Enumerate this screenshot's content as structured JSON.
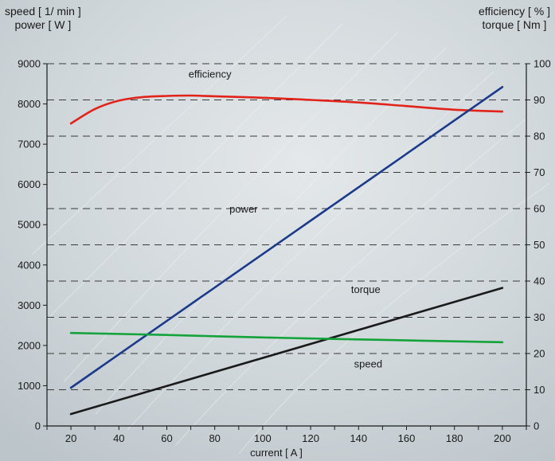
{
  "chart_data": {
    "type": "line",
    "left_axis_label_line1": "speed [ 1/ min ]",
    "left_axis_label_line2": "power [ W ]",
    "right_axis_label_line1": "efficiency [ % ]",
    "right_axis_label_line2": "torque [ Nm ]",
    "xlabel": "current  [ A ]",
    "xlim": [
      10,
      210
    ],
    "x_ticks": [
      20,
      40,
      60,
      80,
      100,
      120,
      140,
      160,
      180,
      200
    ],
    "ylim_left": [
      0,
      9000
    ],
    "y_ticks_left": [
      0,
      1000,
      2000,
      3000,
      4000,
      5000,
      6000,
      7000,
      8000,
      9000
    ],
    "ylim_right": [
      0,
      100
    ],
    "y_ticks_right": [
      0,
      10,
      20,
      30,
      40,
      50,
      60,
      70,
      80,
      90,
      100
    ],
    "grid": "horizontal-dashed",
    "series": [
      {
        "name": "efficiency",
        "axis": "right",
        "color": "#e2231a",
        "label_at": [
          78,
          8650
        ],
        "points": [
          [
            20,
            83.5
          ],
          [
            30,
            87.5
          ],
          [
            40,
            89.8
          ],
          [
            50,
            90.8
          ],
          [
            60,
            91.1
          ],
          [
            70,
            91.2
          ],
          [
            80,
            91.0
          ],
          [
            100,
            90.6
          ],
          [
            120,
            90.0
          ],
          [
            140,
            89.3
          ],
          [
            160,
            88.3
          ],
          [
            180,
            87.3
          ],
          [
            200,
            86.8
          ]
        ]
      },
      {
        "name": "power",
        "axis": "left",
        "color": "#1c3a8c",
        "label_at": [
          92,
          5300
        ],
        "points": [
          [
            20,
            950
          ],
          [
            200,
            8420
          ]
        ]
      },
      {
        "name": "torque",
        "axis": "right",
        "color": "#1a1a1a",
        "label_at": [
          143,
          3300
        ],
        "points": [
          [
            20,
            3.3
          ],
          [
            200,
            38.1
          ]
        ]
      },
      {
        "name": "speed",
        "axis": "left",
        "color": "#13a33a",
        "label_at": [
          144,
          1450
        ],
        "points": [
          [
            20,
            2310
          ],
          [
            60,
            2260
          ],
          [
            100,
            2200
          ],
          [
            140,
            2150
          ],
          [
            200,
            2080
          ]
        ]
      }
    ]
  }
}
